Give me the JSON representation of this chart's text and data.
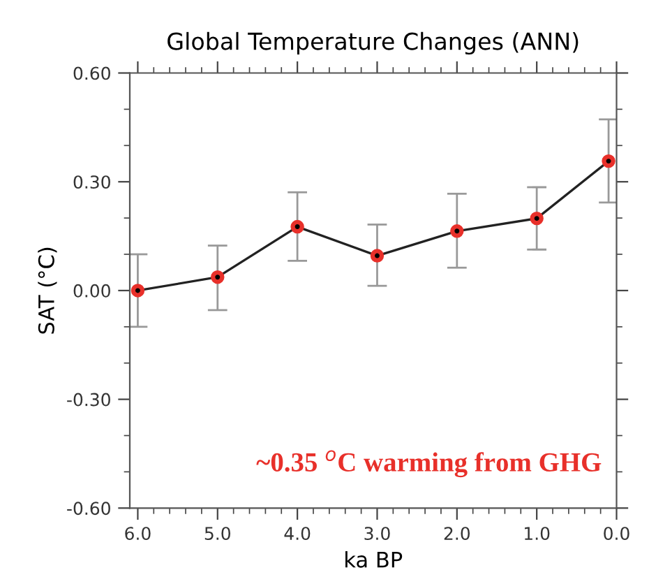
{
  "chart_data": {
    "type": "line",
    "title": "Global Temperature Changes (ANN)",
    "xlabel": "ka BP",
    "ylabel": "SAT (°C)",
    "x": [
      6.0,
      5.0,
      4.0,
      3.0,
      2.0,
      1.0,
      0.1
    ],
    "series": [
      {
        "color": "#222222",
        "values": [
          0.0,
          0.037,
          0.176,
          0.096,
          0.164,
          0.199,
          0.357
        ],
        "errors": [
          [
            -0.1,
            0.1
          ],
          [
            -0.054,
            0.124
          ],
          [
            0.082,
            0.271
          ],
          [
            0.013,
            0.182
          ],
          [
            0.063,
            0.267
          ],
          [
            0.113,
            0.285
          ],
          [
            0.243,
            0.472
          ]
        ]
      }
    ],
    "marker": "circle",
    "xlim": [
      6.1,
      0.0
    ],
    "xticks": [
      {
        "value": 6.0,
        "label": "6.0"
      },
      {
        "value": 5.0,
        "label": "5.0"
      },
      {
        "value": 4.0,
        "label": "4.0"
      },
      {
        "value": 3.0,
        "label": "3.0"
      },
      {
        "value": 2.0,
        "label": "2.0"
      },
      {
        "value": 1.0,
        "label": "1.0"
      },
      {
        "value": 0.0,
        "label": "0.0"
      }
    ],
    "ylim": [
      -0.6,
      0.6
    ],
    "yticks": [
      {
        "value": -0.6,
        "label": "-0.60"
      },
      {
        "value": -0.3,
        "label": "-0.30"
      },
      {
        "value": 0.0,
        "label": "0.00"
      },
      {
        "value": 0.3,
        "label": "0.30"
      },
      {
        "value": 0.6,
        "label": "0.60"
      }
    ],
    "annotations": [
      "~0.35 $^{o}$C warming from GHG"
    ]
  }
}
